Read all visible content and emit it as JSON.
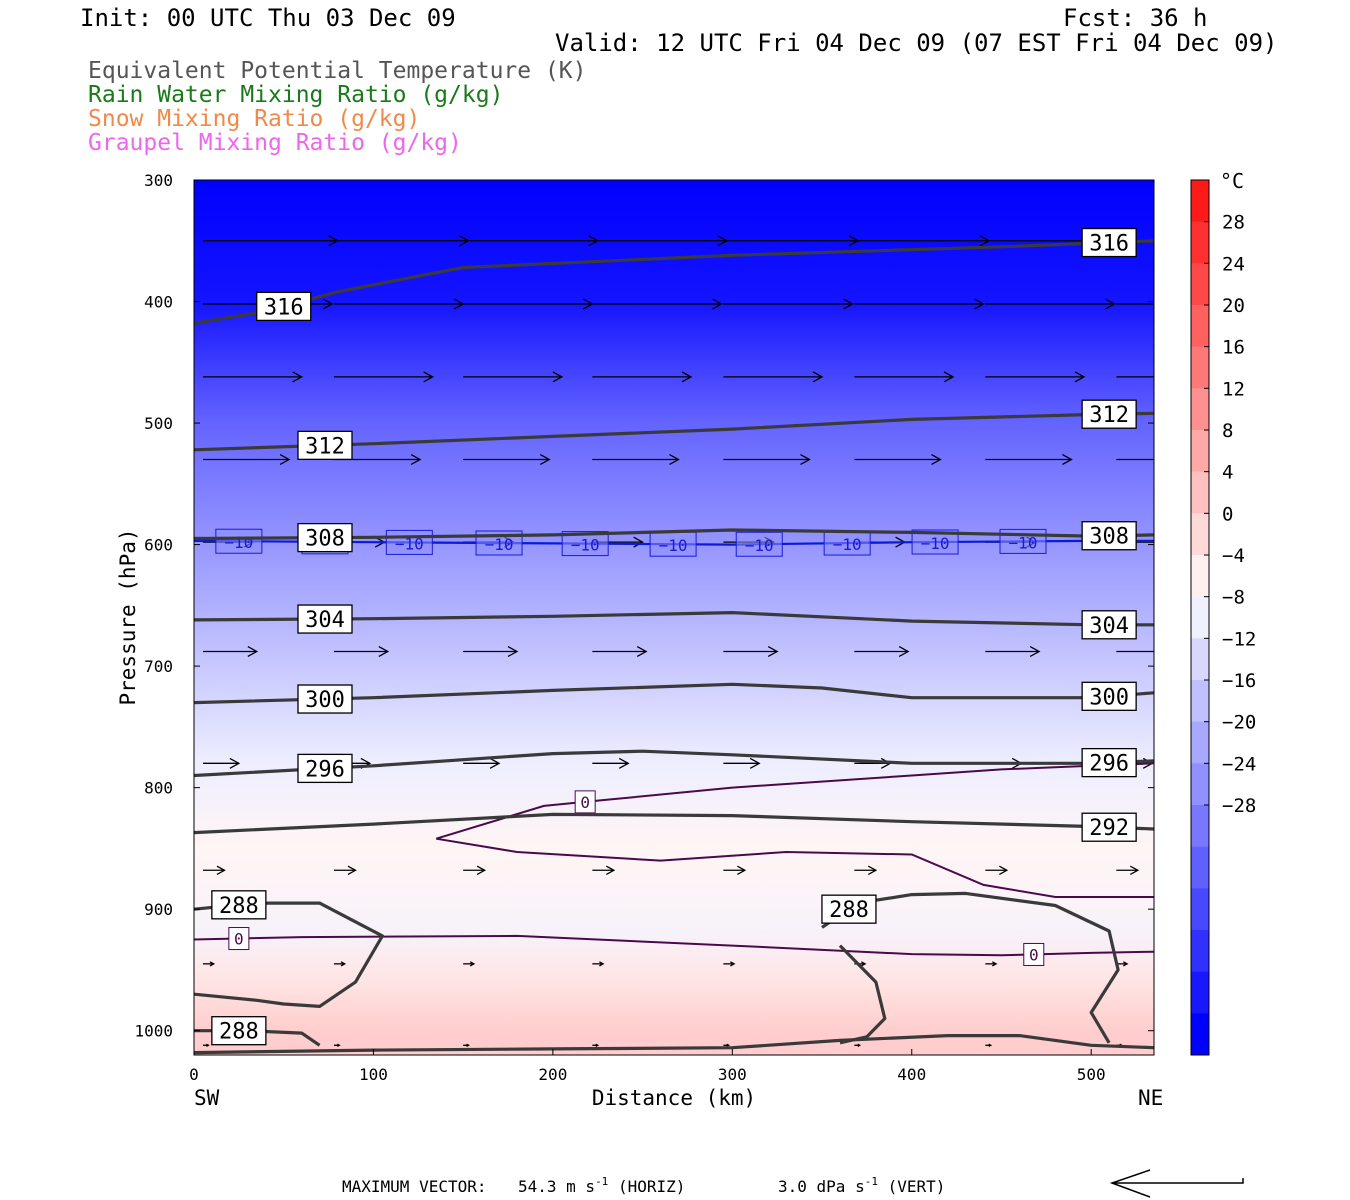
{
  "header": {
    "init": "Init: 00 UTC Thu 03 Dec 09",
    "fcst": "Fcst:   36 h",
    "valid": "Valid: 12 UTC Fri 04 Dec 09 (07 EST Fri 04 Dec 09)"
  },
  "legend": [
    {
      "label": "Equivalent Potential Temperature (K)",
      "color": "#555555"
    },
    {
      "label": "Rain Water Mixing Ratio (g/kg)",
      "color": "#1a7a1a"
    },
    {
      "label": "Snow Mixing Ratio (g/kg)",
      "color": "#f08a4b"
    },
    {
      "label": "Graupel Mixing Ratio (g/kg)",
      "color": "#ee66ee"
    }
  ],
  "footer": {
    "max_vector_label": "MAXIMUM VECTOR:",
    "horiz_value": "54.3 m s",
    "horiz_sup": "-1",
    "horiz_tag": "(HORIZ)",
    "vert_value": "3.0 dPa s",
    "vert_sup": "-1",
    "vert_tag": "(VERT)"
  },
  "chart_data": {
    "type": "cross-section",
    "xlabel": "Distance (km)",
    "ylabel": "Pressure (hPa)",
    "xlim": [
      0,
      535
    ],
    "ylim": [
      1020,
      300
    ],
    "x_ticks": [
      0,
      100,
      200,
      300,
      400,
      500
    ],
    "y_ticks": [
      300,
      400,
      500,
      600,
      700,
      800,
      900,
      1000
    ],
    "endpoints": {
      "left": "SW",
      "right": "NE"
    },
    "colorbar": {
      "unit": "°C",
      "ticks": [
        28,
        24,
        20,
        16,
        12,
        8,
        4,
        0,
        -4,
        -8,
        -12,
        -16,
        -20,
        -24,
        -28
      ],
      "tick_labels": [
        "28",
        "24",
        "20",
        "16",
        "12",
        "8",
        "4",
        "0",
        "−4",
        "−8",
        "−12",
        "−16",
        "−20",
        "−24",
        "−28"
      ],
      "colors": [
        "#ff1a1a",
        "#ff3030",
        "#ff4848",
        "#ff6060",
        "#ff7878",
        "#ff9090",
        "#ffa8a8",
        "#ffc0c0",
        "#ffd8d8",
        "#fff0f0",
        "#f0f0ff",
        "#d8d8ff",
        "#c0c0ff",
        "#a8a8ff",
        "#9090ff",
        "#7878ff",
        "#6060ff",
        "#4848ff",
        "#3030ff",
        "#1818ff",
        "#0000ff"
      ]
    },
    "temperature_field_celsius": [
      {
        "p": 300,
        "t": -46
      },
      {
        "p": 400,
        "t": -32
      },
      {
        "p": 450,
        "t": -24
      },
      {
        "p": 500,
        "t": -18
      },
      {
        "p": 600,
        "t": -10
      },
      {
        "p": 700,
        "t": -4
      },
      {
        "p": 780,
        "t": -1
      },
      {
        "p": 850,
        "t": 1
      },
      {
        "p": 920,
        "t": 0
      },
      {
        "p": 960,
        "t": 3
      },
      {
        "p": 1000,
        "t": 6
      }
    ],
    "theta_e_contours": [
      {
        "label": "316",
        "x": [
          0,
          40,
          80,
          150,
          300,
          450,
          535
        ],
        "p": [
          418,
          408,
          392,
          372,
          362,
          355,
          350
        ],
        "labels_at_km": [
          50,
          510
        ]
      },
      {
        "label": "312",
        "x": [
          0,
          100,
          200,
          300,
          400,
          500,
          535
        ],
        "p": [
          522,
          517,
          511,
          505,
          497,
          493,
          492
        ],
        "labels_at_km": [
          73,
          510
        ]
      },
      {
        "label": "308",
        "x": [
          0,
          100,
          200,
          300,
          400,
          500,
          535
        ],
        "p": [
          595,
          594,
          592,
          588,
          590,
          593,
          592
        ],
        "labels_at_km": [
          73,
          510
        ]
      },
      {
        "label": "304",
        "x": [
          0,
          100,
          200,
          300,
          400,
          500,
          535
        ],
        "p": [
          662,
          661,
          659,
          656,
          663,
          666,
          666
        ],
        "labels_at_km": [
          73,
          510
        ]
      },
      {
        "label": "300",
        "x": [
          0,
          100,
          200,
          300,
          350,
          400,
          500,
          535
        ],
        "p": [
          730,
          726,
          720,
          715,
          718,
          726,
          726,
          722
        ],
        "labels_at_km": [
          73,
          510
        ]
      },
      {
        "label": "296",
        "x": [
          0,
          100,
          200,
          250,
          300,
          400,
          500,
          535
        ],
        "p": [
          790,
          782,
          772,
          770,
          773,
          780,
          780,
          778
        ],
        "labels_at_km": [
          73,
          510
        ]
      },
      {
        "label": "292",
        "x": [
          0,
          100,
          200,
          300,
          400,
          500,
          535
        ],
        "p": [
          837,
          830,
          822,
          823,
          828,
          832,
          834
        ],
        "labels_at_km": [
          510
        ]
      },
      {
        "label": "288",
        "x": [
          0,
          35,
          70,
          105,
          90,
          70,
          50,
          35,
          0
        ],
        "p": [
          900,
          895,
          895,
          922,
          960,
          980,
          978,
          975,
          970
        ],
        "labels_at_km": [
          25
        ]
      },
      {
        "label": "288",
        "x": [
          350,
          370,
          400,
          430,
          480,
          510,
          515,
          500,
          510
        ],
        "p": [
          915,
          895,
          888,
          887,
          897,
          918,
          950,
          985,
          1010
        ],
        "labels_at_km": [
          365
        ]
      },
      {
        "label": "288",
        "x": [
          0,
          30,
          60,
          70
        ],
        "p": [
          1000,
          1000,
          1002,
          1012
        ],
        "labels_at_km": [
          25
        ]
      },
      {
        "label": "",
        "x": [
          360,
          380,
          385,
          375,
          360
        ],
        "p": [
          930,
          960,
          990,
          1005,
          1010
        ],
        "labels_at_km": []
      },
      {
        "label": "",
        "x": [
          0,
          100,
          200,
          300,
          360,
          420,
          460,
          500,
          535
        ],
        "p": [
          1018,
          1016,
          1015,
          1014,
          1008,
          1004,
          1004,
          1012,
          1014
        ],
        "labels_at_km": []
      }
    ],
    "zero_isotherms": [
      {
        "label": "0",
        "x": [
          135,
          195,
          230,
          300,
          400,
          450,
          500,
          535
        ],
        "p": [
          842,
          815,
          810,
          800,
          790,
          785,
          782,
          780
        ],
        "labels_at_km": [
          218
        ]
      },
      {
        "label": "0",
        "x": [
          135,
          180,
          260,
          330,
          400,
          440,
          480,
          535
        ],
        "p": [
          842,
          853,
          860,
          853,
          855,
          880,
          890,
          890
        ],
        "labels_at_km": []
      },
      {
        "label": "0",
        "x": [
          0,
          60,
          180,
          300,
          400,
          450,
          500,
          535
        ],
        "p": [
          925,
          923,
          922,
          930,
          937,
          938,
          936,
          935
        ],
        "labels_at_km": [
          25,
          468
        ]
      }
    ],
    "minus10_isotherm": {
      "label": "−10",
      "x": [
        0,
        100,
        200,
        300,
        400,
        500,
        535
      ],
      "p": [
        597,
        598,
        599,
        600,
        598,
        597,
        597
      ],
      "labels_at_km": [
        25,
        73,
        120,
        170,
        218,
        267,
        315,
        364,
        413,
        462
      ]
    },
    "wind_rows": [
      {
        "p": 350,
        "len_km": 75
      },
      {
        "p": 402,
        "len_km": 72
      },
      {
        "p": 462,
        "len_km": 55
      },
      {
        "p": 530,
        "len_km": 48
      },
      {
        "p": 598,
        "len_km": 28
      },
      {
        "p": 688,
        "len_km": 30
      },
      {
        "p": 780,
        "len_km": 20
      },
      {
        "p": 868,
        "len_km": 12
      },
      {
        "p": 945,
        "len_km": 6
      },
      {
        "p": 1012,
        "len_km": 3
      }
    ],
    "wind_x_km": [
      5,
      78,
      150,
      222,
      295,
      368,
      441,
      514
    ]
  }
}
